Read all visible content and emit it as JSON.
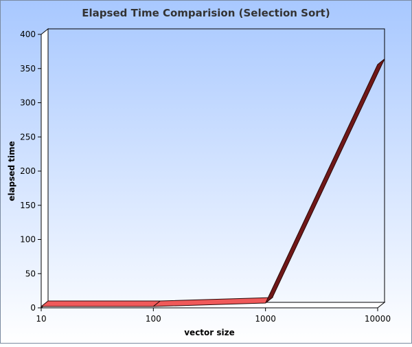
{
  "chart_data": {
    "type": "line",
    "title": "Elapsed Time Comparision (Selection Sort)",
    "xlabel": "vector size",
    "ylabel": "elapsed time",
    "x": [
      10,
      100,
      1000,
      10000
    ],
    "x_tick_labels": [
      "10",
      "100",
      "1000",
      "10000"
    ],
    "x_scale": "log",
    "series": [
      {
        "values": [
          2,
          2,
          7,
          356
        ]
      }
    ],
    "ylim": [
      0,
      400
    ],
    "y_ticks": [
      0,
      50,
      100,
      150,
      200,
      250,
      300,
      350,
      400
    ],
    "grid": false,
    "legend": "none",
    "colors": {
      "background_top": "#a8c8ff",
      "background_bottom": "#ffffff",
      "ribbon_light": "#f05a5a",
      "ribbon_dark": "#701818",
      "ribbon_outline": "#2a0808"
    }
  }
}
